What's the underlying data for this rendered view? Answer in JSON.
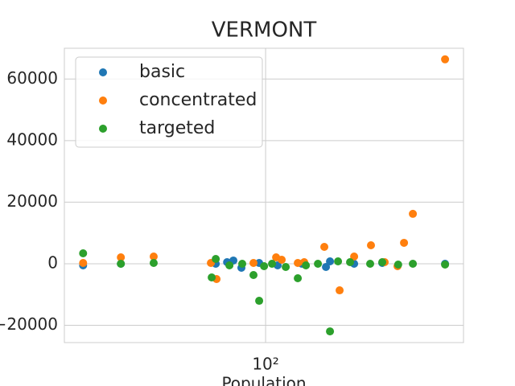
{
  "chart_data": {
    "type": "scatter",
    "title": "VERMONT",
    "x_label": "Population",
    "xscale": "log",
    "xlim": [
      23.7,
      412
    ],
    "xticks": [
      {
        "value": 100,
        "label": "10²"
      }
    ],
    "ylim": [
      -25600,
      70000
    ],
    "yticks": [
      {
        "value": -20000,
        "label": "−20000"
      },
      0,
      20000,
      40000,
      60000
    ],
    "grid": true,
    "legend": "upper left",
    "series": [
      {
        "name": "basic",
        "color": "#1f77b4",
        "x": [
          27.1,
          35.5,
          70.0,
          75.9,
          79.4,
          84.1,
          95.5,
          109.0,
          129.6,
          154.0,
          158.5,
          188.4,
          230.4,
          361.1
        ],
        "values": [
          -520,
          0,
          0,
          520,
          1050,
          -1310,
          260,
          -520,
          0,
          -1050,
          780,
          0,
          260,
          0
        ]
      },
      {
        "name": "concentrated",
        "color": "#ff7f0e",
        "x": [
          27.1,
          35.5,
          44.9,
          67.6,
          70.4,
          91.7,
          107.8,
          112.2,
          125.9,
          131.8,
          152.2,
          169.8,
          188.4,
          212.5,
          234.4,
          257.0,
          269.2,
          286.8,
          361.1
        ],
        "values": [
          260,
          2090,
          2350,
          260,
          -4970,
          260,
          2090,
          1310,
          260,
          520,
          5490,
          -8630,
          2350,
          6010,
          520,
          -780,
          6800,
          16210,
          66400
        ]
      },
      {
        "name": "targeted",
        "color": "#2ca02c",
        "x": [
          27.1,
          35.5,
          44.9,
          68.0,
          70.0,
          77.2,
          84.6,
          91.7,
          95.5,
          98.9,
          104.7,
          115.5,
          125.9,
          133.4,
          145.4,
          158.5,
          167.9,
          183.0,
          211.3,
          230.4,
          258.2,
          286.8,
          361.1
        ],
        "values": [
          3400,
          0,
          260,
          -4440,
          1570,
          -520,
          0,
          -3660,
          -12030,
          -780,
          0,
          -1050,
          -4710,
          -520,
          0,
          -21960,
          780,
          520,
          0,
          520,
          -260,
          0,
          -260
        ]
      }
    ]
  }
}
